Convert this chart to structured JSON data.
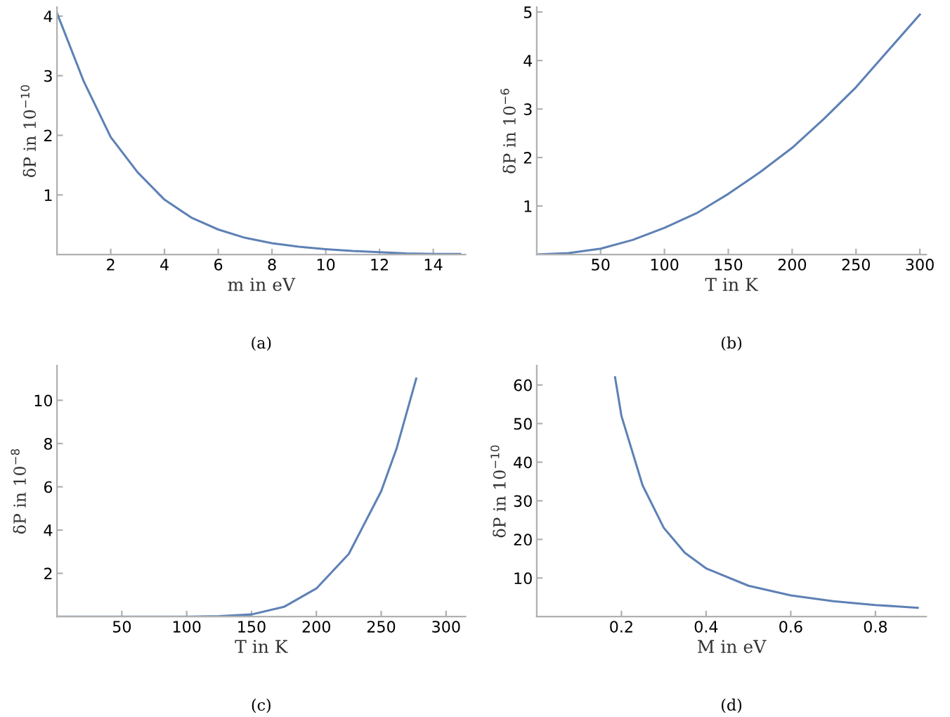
{
  "chart_data": [
    {
      "type": "line",
      "xlabel": "m in eV",
      "ylabel": "δP in 10$^{−10}$",
      "annotations": [
        "(a)"
      ],
      "xlim": [
        0,
        15.2
      ],
      "ylim": [
        0,
        4.15
      ],
      "xticks": [
        2,
        4,
        6,
        8,
        10,
        12,
        14
      ],
      "yticks": [
        1,
        2,
        3,
        4
      ],
      "grid": false,
      "series": [
        {
          "color": "#5e81b5",
          "x": [
            0,
            1,
            2,
            3,
            4,
            5,
            6,
            7,
            8,
            9,
            10,
            11,
            12,
            13,
            14,
            15
          ],
          "values": [
            4.05,
            2.9,
            1.97,
            1.38,
            0.92,
            0.62,
            0.42,
            0.28,
            0.19,
            0.13,
            0.09,
            0.06,
            0.04,
            0.02,
            0.01,
            0.01
          ]
        }
      ]
    },
    {
      "type": "line",
      "xlabel": "T in K",
      "ylabel": "δP in 10$^{−6}$",
      "annotations": [
        "(b)"
      ],
      "xlim": [
        0,
        305
      ],
      "ylim": [
        0,
        5.1
      ],
      "xticks": [
        50,
        100,
        150,
        200,
        250,
        300
      ],
      "yticks": [
        1,
        2,
        3,
        4,
        5
      ],
      "grid": false,
      "series": [
        {
          "color": "#5e81b5",
          "x": [
            0,
            25,
            50,
            75,
            100,
            125,
            150,
            175,
            200,
            225,
            250,
            275,
            300
          ],
          "values": [
            0,
            0.03,
            0.12,
            0.3,
            0.55,
            0.85,
            1.25,
            1.7,
            2.2,
            2.8,
            3.45,
            4.2,
            4.95
          ]
        }
      ]
    },
    {
      "type": "line",
      "xlabel": "T in K",
      "ylabel": "δP in 10$^{−8}$",
      "annotations": [
        "(c)"
      ],
      "xlim": [
        0,
        315
      ],
      "ylim": [
        0,
        11.6
      ],
      "xticks": [
        50,
        100,
        150,
        200,
        250,
        300
      ],
      "yticks": [
        2,
        4,
        6,
        8,
        10
      ],
      "grid": false,
      "series": [
        {
          "color": "#5e81b5",
          "x": [
            0,
            50,
            100,
            125,
            150,
            175,
            200,
            225,
            250,
            262,
            277
          ],
          "values": [
            0,
            0,
            0,
            0.02,
            0.1,
            0.45,
            1.3,
            2.9,
            5.8,
            7.8,
            11.0
          ]
        }
      ]
    },
    {
      "type": "line",
      "xlabel": "M in eV",
      "ylabel": "δP in 10$^{−10}$",
      "annotations": [
        "(d)"
      ],
      "xlim": [
        0,
        0.92
      ],
      "ylim": [
        0,
        65
      ],
      "xticks": [
        0.2,
        0.4,
        0.6,
        0.8
      ],
      "yticks": [
        10,
        20,
        30,
        40,
        50,
        60
      ],
      "grid": false,
      "series": [
        {
          "color": "#5e81b5",
          "x": [
            0.185,
            0.2,
            0.25,
            0.3,
            0.35,
            0.4,
            0.5,
            0.6,
            0.7,
            0.8,
            0.9
          ],
          "values": [
            62,
            52,
            34,
            23,
            16.5,
            12.5,
            8.0,
            5.5,
            4.0,
            3.0,
            2.3
          ]
        }
      ]
    }
  ]
}
